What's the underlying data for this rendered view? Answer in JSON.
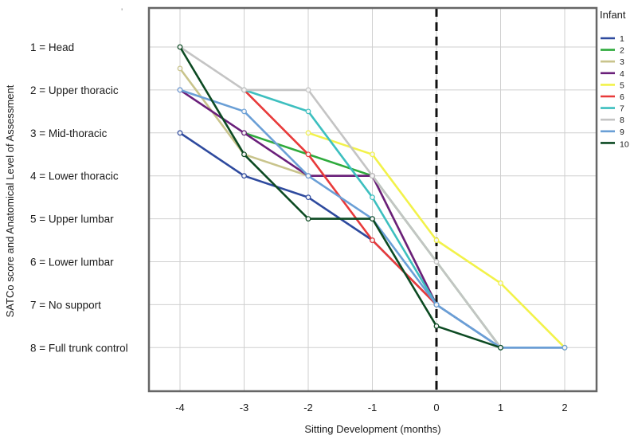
{
  "chart_data": {
    "type": "line",
    "title": "",
    "xlabel": "Sitting Development (months)",
    "ylabel": "SATCo score and Anatomical Level of Assessment",
    "xlim": [
      -4.5,
      2.5
    ],
    "ylim": [
      0.2,
      8.9
    ],
    "x_ticks": [
      -4,
      -3,
      -2,
      -1,
      0,
      1,
      2
    ],
    "x_tick_labels": [
      "-4",
      "-3",
      "-2",
      "-1",
      "0",
      "1",
      "2"
    ],
    "y_ticks": [
      1,
      2,
      3,
      4,
      5,
      6,
      7,
      8
    ],
    "y_tick_labels": [
      "1 = Head",
      "2 = Upper thoracic",
      "3 = Mid-thoracic",
      "4 = Lower thoracic",
      "5 = Upper lumbar",
      "6 = Lower lumbar",
      "7 = No support",
      "8 = Full trunk control"
    ],
    "grid": true,
    "reference_line": {
      "x": 0,
      "style": "dashed",
      "color": "#111111"
    },
    "legend_title": "Infant",
    "legend_position": "right",
    "series": [
      {
        "name": "1",
        "color": "#2e4a9e",
        "x": [
          -4,
          -3,
          -2,
          -1,
          0,
          1,
          2
        ],
        "y": [
          3,
          4,
          4.5,
          5.5,
          7,
          8,
          8
        ]
      },
      {
        "name": "2",
        "color": "#2eaa3c",
        "x": [
          -3,
          -1,
          1
        ],
        "y": [
          3,
          4,
          8
        ]
      },
      {
        "name": "3",
        "color": "#c9c48c",
        "x": [
          -4,
          -3,
          -2,
          -1,
          0
        ],
        "y": [
          1.5,
          3.5,
          4,
          4,
          7
        ]
      },
      {
        "name": "4",
        "color": "#6a1f7a",
        "x": [
          -4,
          -3,
          -2,
          -1,
          0
        ],
        "y": [
          2,
          3,
          4,
          4,
          7
        ]
      },
      {
        "name": "5",
        "color": "#f2f24a",
        "x": [
          -2,
          -1,
          0,
          1,
          2
        ],
        "y": [
          3,
          3.5,
          5.5,
          6.5,
          8
        ]
      },
      {
        "name": "6",
        "color": "#e83a3a",
        "x": [
          -3,
          -2,
          -1,
          0
        ],
        "y": [
          2,
          3.5,
          5.5,
          7
        ]
      },
      {
        "name": "7",
        "color": "#3dbfbf",
        "x": [
          -3,
          -2,
          -1,
          0
        ],
        "y": [
          2,
          2.5,
          4.5,
          7
        ]
      },
      {
        "name": "8",
        "color": "#c4c4c4",
        "x": [
          -4,
          -3,
          -2,
          -1,
          0,
          1
        ],
        "y": [
          1,
          2,
          2,
          4,
          6,
          8
        ]
      },
      {
        "name": "9",
        "color": "#6a9fd6",
        "x": [
          -4,
          -3,
          -2,
          -1,
          0,
          1,
          2
        ],
        "y": [
          2,
          2.5,
          4,
          5,
          7,
          8,
          8
        ]
      },
      {
        "name": "10",
        "color": "#0c4a22",
        "x": [
          -4,
          -3,
          -2,
          -1,
          0,
          1
        ],
        "y": [
          1,
          3.5,
          5,
          5,
          7.5,
          8
        ]
      }
    ],
    "corner_mark": "'"
  }
}
